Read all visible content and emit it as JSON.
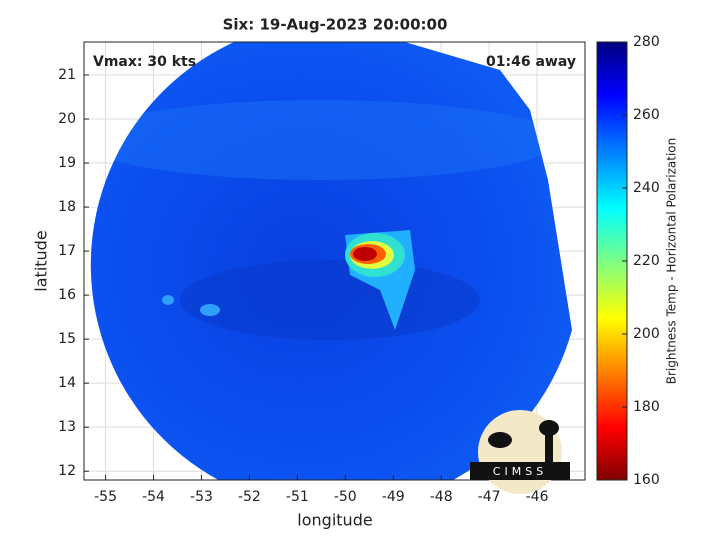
{
  "chart_data": {
    "type": "image",
    "title": "Six: 19-Aug-2023 20:00:00",
    "annotations": [
      "Vmax: 30 kts",
      "01:46 away"
    ],
    "xlabel": "longitude",
    "ylabel": "latitude",
    "xlim": [
      -55.45,
      -45.0
    ],
    "xticks": [
      -55,
      -54,
      -53,
      -52,
      -51,
      -50,
      -49,
      -48,
      -47,
      -46
    ],
    "ylim": [
      11.8,
      21.75
    ],
    "yticks": [
      12,
      13,
      14,
      15,
      16,
      17,
      18,
      19,
      20,
      21
    ],
    "grid": true,
    "colorbar": {
      "label": "Brightness Temp - Horizontal Polarization",
      "clim": [
        160,
        280
      ],
      "ticks": [
        160,
        180,
        200,
        220,
        240,
        260,
        280
      ],
      "colormap": "jet"
    },
    "logo": "CIMSS"
  }
}
